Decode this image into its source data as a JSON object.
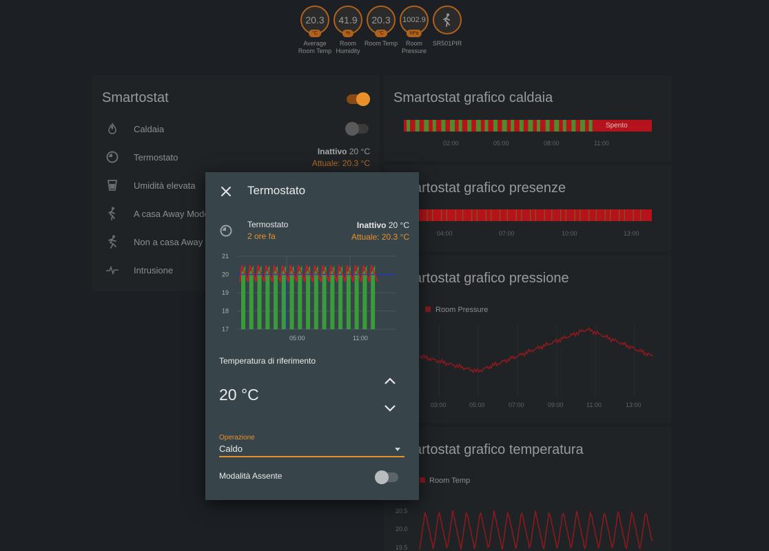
{
  "colors": {
    "accent": "#e8912b",
    "badge_border": "#b0621b",
    "chart_red": "#c81f26",
    "chart_green": "#3a9b3a",
    "chart_blue": "#2238b0",
    "card_bg": "#1f2326",
    "dialog_bg": "#37454b"
  },
  "badges": [
    {
      "value": "20.3",
      "unit": "°C",
      "label": "Average Room Temp"
    },
    {
      "value": "41.9",
      "unit": "%",
      "label": "Room Humidity"
    },
    {
      "value": "20.3",
      "unit": "°C",
      "label": "Room Temp"
    },
    {
      "value": "1002.9",
      "unit": "hPa",
      "label": "Room Pressure"
    },
    {
      "icon": "walking-person-icon",
      "label": "SR501PIR"
    }
  ],
  "smartostat": {
    "title": "Smartostat",
    "master_toggle_on": true,
    "rows": [
      {
        "icon": "fire-icon",
        "label": "Caldaia",
        "toggle_on": false
      },
      {
        "icon": "thermostat-icon",
        "label": "Termostato",
        "state": "Inattivo",
        "target": "20 °C",
        "current": "Attuale: 20.3 °C"
      },
      {
        "icon": "cup-icon",
        "label": "Umidità elevata"
      },
      {
        "icon": "walking-person-icon",
        "label": "A casa Away Mode"
      },
      {
        "icon": "running-person-icon",
        "label": "Non a casa Away Mode"
      },
      {
        "icon": "pulse-icon",
        "label": "Intrusione"
      }
    ]
  },
  "graph_cards": [
    {
      "title": "Smartostat grafico caldaia",
      "timeline_label": "Spento",
      "ticks": [
        "02:00",
        "05:00",
        "08:00",
        "11:00"
      ]
    },
    {
      "title": "Smartostat grafico presenze",
      "ticks": [
        "04:00",
        "07:00",
        "10:00",
        "13:00"
      ]
    },
    {
      "title": "Smartostat grafico pressione",
      "legend": "Room Pressure",
      "ticks": [
        "03:00",
        "05:00",
        "07:00",
        "09:00",
        "11:00",
        "13:00"
      ]
    },
    {
      "title": "Smartostat grafico temperatura",
      "legend": "Room Temp",
      "yticks": [
        "20.5",
        "20.0",
        "19.5"
      ]
    }
  ],
  "dialog": {
    "title": "Termostato",
    "entity_name": "Termostato",
    "last_changed": "2 ore fa",
    "state": "Inattivo",
    "target": "20 °C",
    "current": "Attuale: 20.3 °C",
    "target_label": "Temperatura di riferimento",
    "target_value": "20 °C",
    "operation_label": "Operazione",
    "operation_value": "Caldo",
    "away_label": "Modalità Assente",
    "away_on": false
  },
  "chart_data": [
    {
      "type": "line",
      "title": "",
      "yticks": [
        21,
        20,
        19,
        18,
        17
      ],
      "ylim": [
        17,
        21
      ],
      "xticks": [
        "05:00",
        "11:00"
      ],
      "series": [],
      "target_temperature": 20,
      "heating_periods": 17
    }
  ]
}
